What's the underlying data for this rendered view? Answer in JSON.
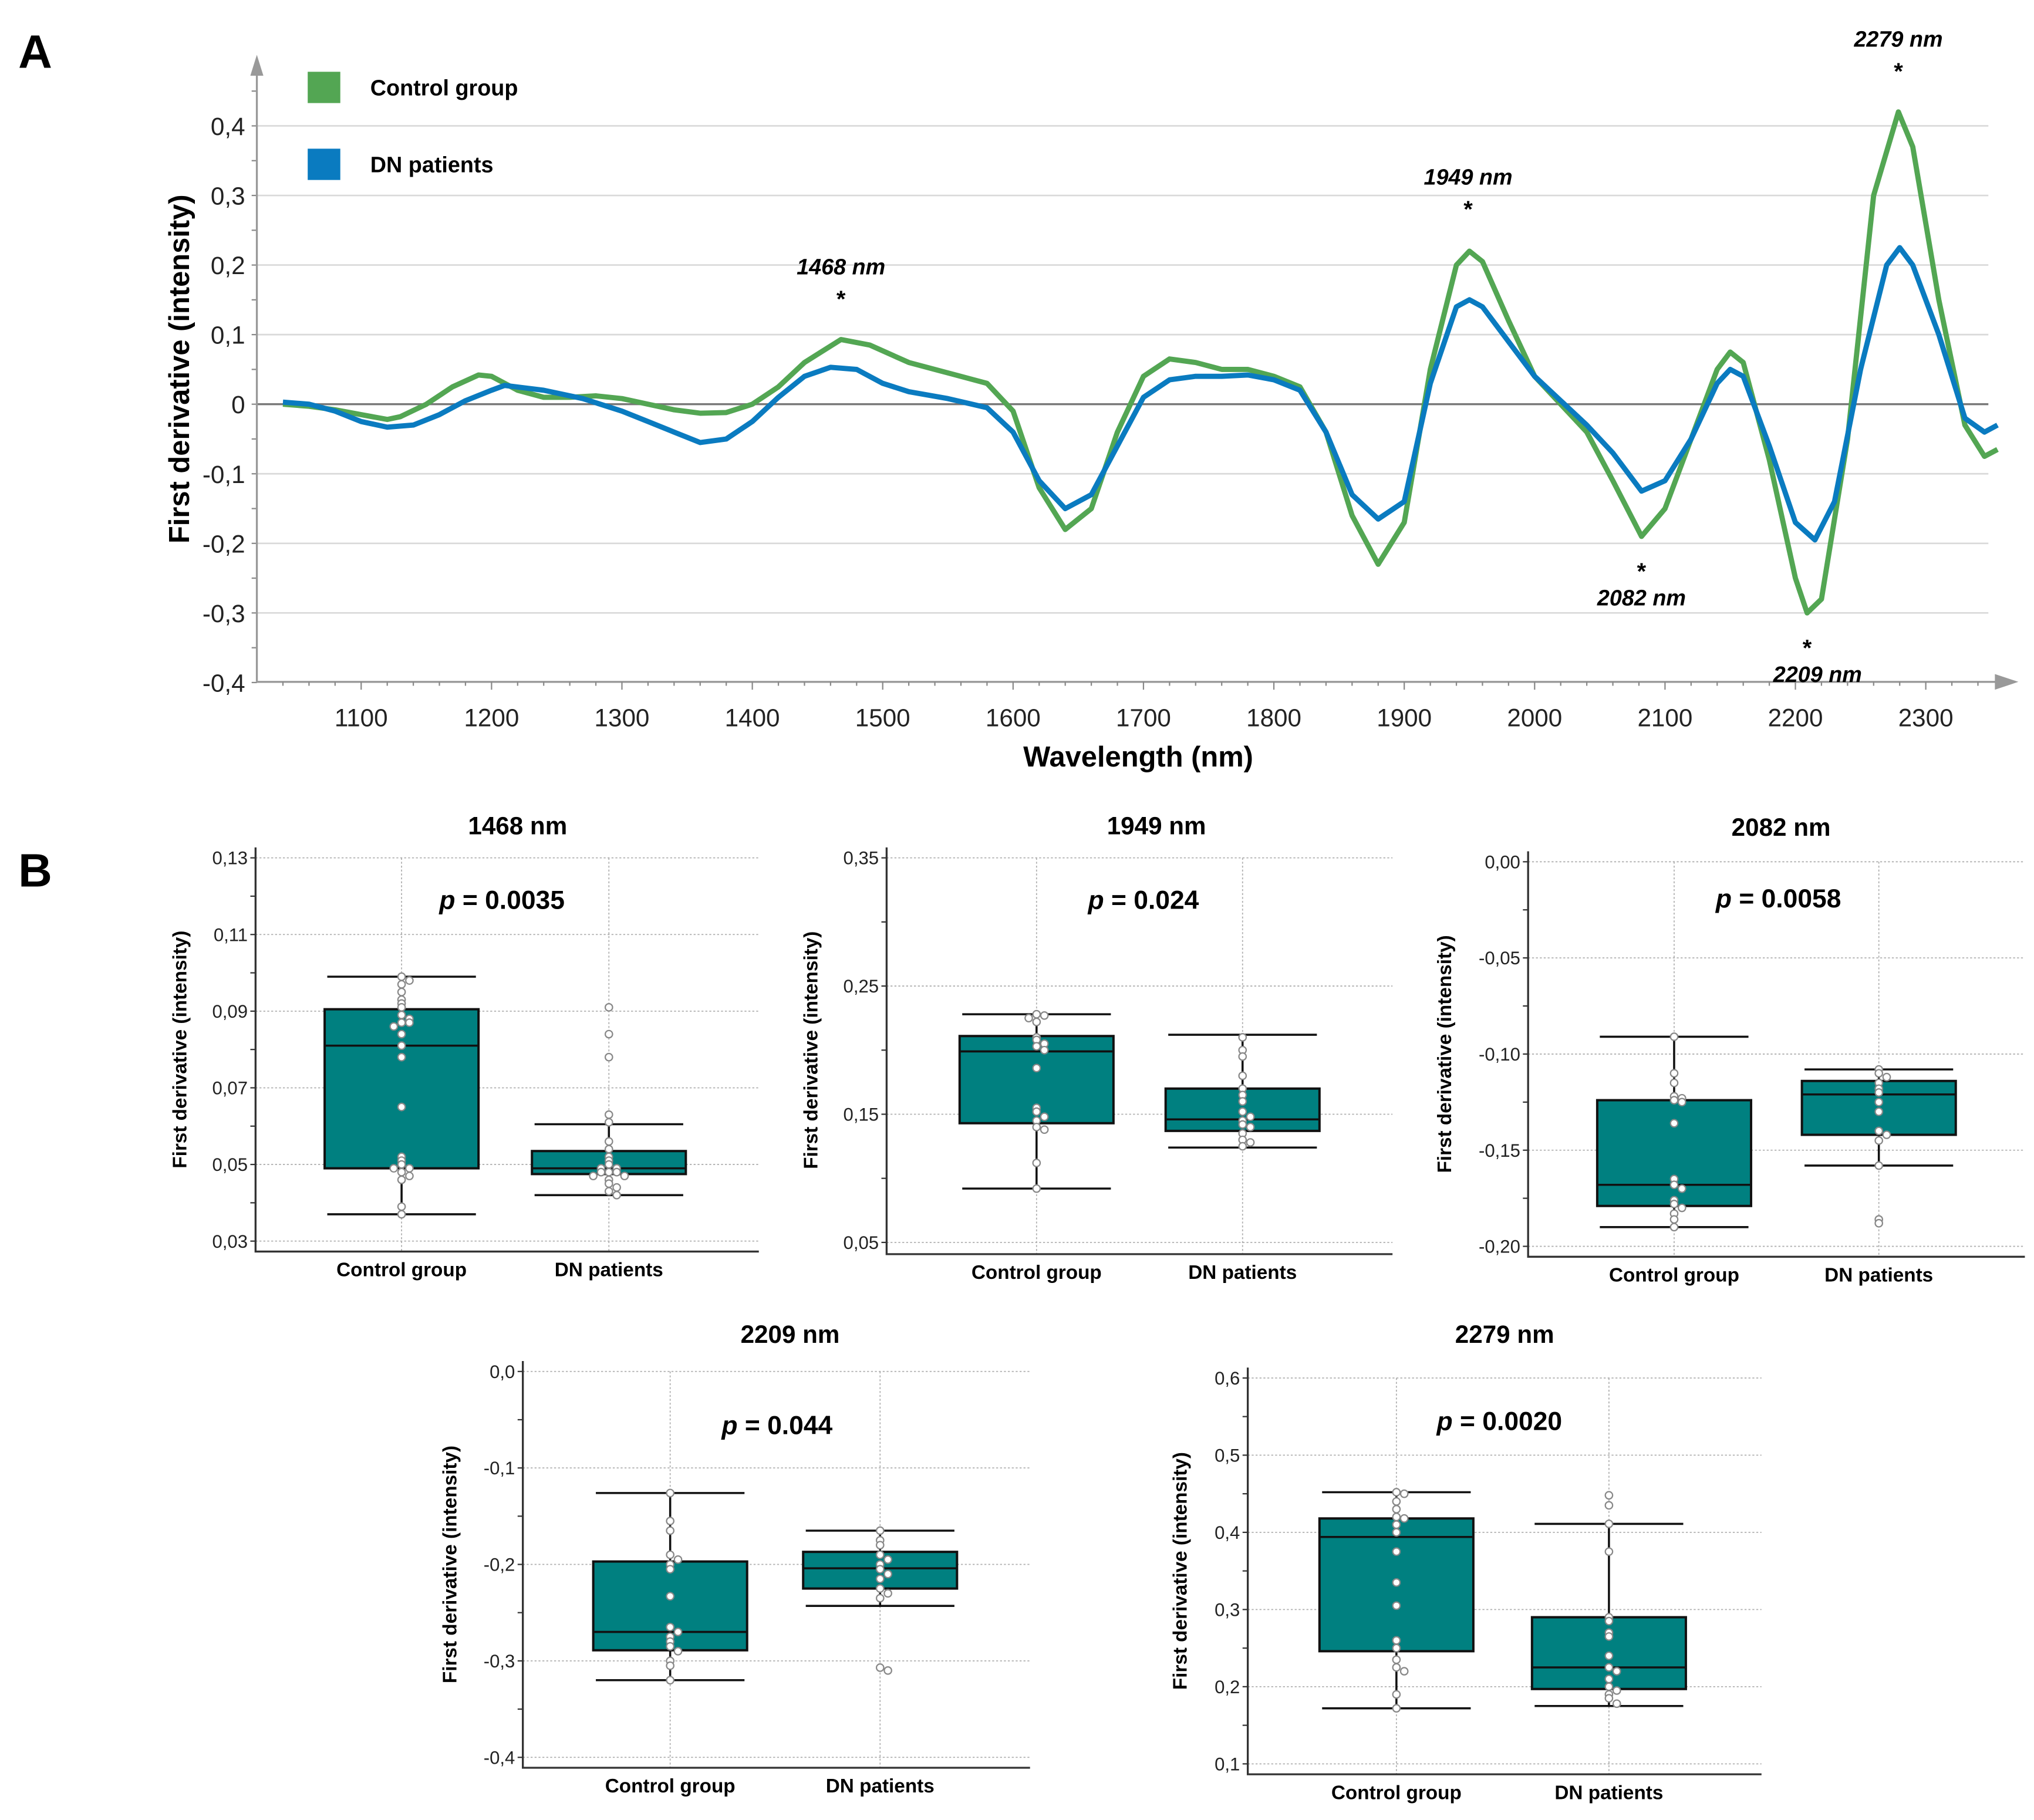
{
  "panel_labels": {
    "a": "A",
    "b": "B"
  },
  "chart_data": [
    {
      "type": "line",
      "panel": "A",
      "xlabel": "Wavelength (nm)",
      "ylabel": "First derivative (intensity)",
      "xlim": [
        1040,
        2360
      ],
      "ylim": [
        -0.4,
        0.4
      ],
      "xticks": [
        1100,
        1200,
        1300,
        1400,
        1500,
        1600,
        1700,
        1800,
        1900,
        2000,
        2100,
        2200,
        2300
      ],
      "yticks": [
        {
          "v": 0.4,
          "label": "0,4"
        },
        {
          "v": 0.3,
          "label": "0,3"
        },
        {
          "v": 0.2,
          "label": "0,2"
        },
        {
          "v": 0.1,
          "label": "0,1"
        },
        {
          "v": 0,
          "label": "0"
        },
        {
          "v": -0.1,
          "label": "-0,1"
        },
        {
          "v": -0.2,
          "label": "-0,2"
        },
        {
          "v": -0.3,
          "label": "-0,3"
        },
        {
          "v": -0.4,
          "label": "-0,4"
        }
      ],
      "grid": true,
      "legend_position": "top-left",
      "series": [
        {
          "name": "Control group",
          "color": "#53a653",
          "x": [
            1040,
            1060,
            1080,
            1100,
            1120,
            1130,
            1150,
            1170,
            1190,
            1200,
            1220,
            1240,
            1260,
            1280,
            1300,
            1320,
            1340,
            1360,
            1380,
            1400,
            1420,
            1440,
            1468,
            1490,
            1520,
            1550,
            1580,
            1600,
            1620,
            1640,
            1660,
            1680,
            1700,
            1720,
            1740,
            1760,
            1780,
            1800,
            1820,
            1840,
            1860,
            1880,
            1900,
            1920,
            1940,
            1950,
            1960,
            1980,
            2000,
            2020,
            2040,
            2060,
            2082,
            2100,
            2120,
            2140,
            2150,
            2160,
            2180,
            2200,
            2209,
            2220,
            2240,
            2260,
            2279,
            2290,
            2310,
            2330,
            2345,
            2355
          ],
          "y": [
            0,
            -0.003,
            -0.008,
            -0.015,
            -0.022,
            -0.018,
            0,
            0.025,
            0.042,
            0.04,
            0.02,
            0.01,
            0.01,
            0.012,
            0.008,
            0,
            -0.008,
            -0.013,
            -0.012,
            0,
            0.025,
            0.06,
            0.093,
            0.085,
            0.06,
            0.045,
            0.03,
            -0.01,
            -0.12,
            -0.18,
            -0.15,
            -0.04,
            0.04,
            0.065,
            0.06,
            0.05,
            0.05,
            0.04,
            0.025,
            -0.04,
            -0.16,
            -0.23,
            -0.17,
            0.05,
            0.2,
            0.22,
            0.205,
            0.12,
            0.04,
            0,
            -0.04,
            -0.11,
            -0.19,
            -0.15,
            -0.05,
            0.05,
            0.075,
            0.06,
            -0.08,
            -0.25,
            -0.3,
            -0.28,
            -0.05,
            0.3,
            0.42,
            0.37,
            0.15,
            -0.03,
            -0.075,
            -0.065
          ]
        },
        {
          "name": "DN patients",
          "color": "#0a7bc0",
          "x": [
            1040,
            1060,
            1080,
            1100,
            1120,
            1140,
            1160,
            1180,
            1200,
            1210,
            1240,
            1270,
            1300,
            1320,
            1340,
            1360,
            1380,
            1400,
            1420,
            1440,
            1460,
            1480,
            1500,
            1520,
            1550,
            1580,
            1600,
            1620,
            1640,
            1660,
            1680,
            1700,
            1720,
            1740,
            1760,
            1780,
            1800,
            1820,
            1840,
            1860,
            1880,
            1900,
            1920,
            1940,
            1950,
            1960,
            1980,
            2000,
            2020,
            2040,
            2060,
            2082,
            2100,
            2120,
            2140,
            2150,
            2160,
            2180,
            2200,
            2215,
            2230,
            2250,
            2270,
            2280,
            2290,
            2310,
            2330,
            2345,
            2355
          ],
          "y": [
            0.003,
            0,
            -0.01,
            -0.025,
            -0.033,
            -0.03,
            -0.015,
            0.005,
            0.02,
            0.027,
            0.02,
            0.008,
            -0.01,
            -0.025,
            -0.04,
            -0.055,
            -0.05,
            -0.025,
            0.01,
            0.04,
            0.053,
            0.05,
            0.03,
            0.018,
            0.008,
            -0.005,
            -0.04,
            -0.11,
            -0.15,
            -0.13,
            -0.06,
            0.01,
            0.035,
            0.04,
            0.04,
            0.042,
            0.035,
            0.02,
            -0.04,
            -0.13,
            -0.165,
            -0.14,
            0.03,
            0.14,
            0.15,
            0.14,
            0.09,
            0.04,
            0.005,
            -0.03,
            -0.07,
            -0.125,
            -0.11,
            -0.05,
            0.03,
            0.05,
            0.04,
            -0.06,
            -0.17,
            -0.195,
            -0.14,
            0.05,
            0.2,
            0.225,
            0.2,
            0.1,
            -0.02,
            -0.04,
            -0.03
          ]
        }
      ],
      "annotations": [
        {
          "label": "1468 nm",
          "star": "*",
          "x": 1468,
          "y": 0.093,
          "side": "above"
        },
        {
          "label": "1949 nm",
          "star": "*",
          "x": 1949,
          "y": 0.222,
          "side": "above"
        },
        {
          "label": "2279 nm",
          "star": "*",
          "x": 2279,
          "y": 0.42,
          "side": "above"
        },
        {
          "label": "2082 nm",
          "star": "*",
          "x": 2082,
          "y": -0.19,
          "side": "below"
        },
        {
          "label": "2209 nm",
          "star": "*",
          "x": 2209,
          "y": -0.3,
          "side": "below"
        }
      ]
    },
    {
      "type": "box",
      "panel": "B",
      "title": "1468 nm",
      "p_label": "p",
      "p_value": "= 0.0035",
      "ylabel": "First derivative (intensity)",
      "ylim": [
        0.03,
        0.13
      ],
      "yminor": 0.01,
      "yticks": [
        {
          "v": 0.13,
          "label": "0,13"
        },
        {
          "v": 0.11,
          "label": "0,11"
        },
        {
          "v": 0.09,
          "label": "0,09"
        },
        {
          "v": 0.07,
          "label": "0,07"
        },
        {
          "v": 0.05,
          "label": "0,05"
        },
        {
          "v": 0.03,
          "label": "0,03"
        }
      ],
      "fill": "#008080",
      "groups": [
        {
          "name": "Control group",
          "whisker_low": 0.037,
          "q1": 0.049,
          "median": 0.081,
          "q3": 0.0905,
          "whisker_high": 0.099,
          "points": [
            0.099,
            0.098,
            0.097,
            0.095,
            0.093,
            0.092,
            0.091,
            0.089,
            0.088,
            0.087,
            0.087,
            0.086,
            0.084,
            0.081,
            0.078,
            0.065,
            0.052,
            0.051,
            0.05,
            0.049,
            0.049,
            0.048,
            0.047,
            0.046,
            0.039,
            0.037
          ]
        },
        {
          "name": "DN patients",
          "whisker_low": 0.042,
          "q1": 0.0475,
          "median": 0.049,
          "q3": 0.0535,
          "whisker_high": 0.0605,
          "points": [
            0.091,
            0.084,
            0.078,
            0.063,
            0.061,
            0.056,
            0.054,
            0.052,
            0.051,
            0.05,
            0.049,
            0.049,
            0.048,
            0.048,
            0.048,
            0.047,
            0.047,
            0.046,
            0.045,
            0.044,
            0.043,
            0.042
          ]
        }
      ]
    },
    {
      "type": "box",
      "panel": "B",
      "title": "1949 nm",
      "p_label": "p",
      "p_value": "= 0.024",
      "ylabel": "First derivative (intensity)",
      "ylim": [
        0.05,
        0.35
      ],
      "yminor": 0.05,
      "yticks": [
        {
          "v": 0.35,
          "label": "0,35"
        },
        {
          "v": 0.25,
          "label": "0,25"
        },
        {
          "v": 0.15,
          "label": "0,15"
        },
        {
          "v": 0.05,
          "label": "0,05"
        }
      ],
      "fill": "#008080",
      "groups": [
        {
          "name": "Control group",
          "whisker_low": 0.092,
          "q1": 0.143,
          "median": 0.199,
          "q3": 0.211,
          "whisker_high": 0.228,
          "points": [
            0.228,
            0.227,
            0.225,
            0.222,
            0.21,
            0.208,
            0.205,
            0.203,
            0.2,
            0.186,
            0.155,
            0.152,
            0.148,
            0.145,
            0.14,
            0.138,
            0.112,
            0.092
          ]
        },
        {
          "name": "DN patients",
          "whisker_low": 0.124,
          "q1": 0.137,
          "median": 0.146,
          "q3": 0.17,
          "whisker_high": 0.212,
          "points": [
            0.21,
            0.2,
            0.195,
            0.18,
            0.17,
            0.165,
            0.16,
            0.152,
            0.148,
            0.145,
            0.142,
            0.14,
            0.135,
            0.13,
            0.128,
            0.125
          ]
        }
      ]
    },
    {
      "type": "box",
      "panel": "B",
      "title": "2082 nm",
      "p_label": "p",
      "p_value": "= 0.0058",
      "ylabel": "First derivative (intensity)",
      "ylim": [
        -0.2,
        0.0
      ],
      "yminor": 0.025,
      "yticks": [
        {
          "v": 0,
          "label": "0,00"
        },
        {
          "v": -0.05,
          "label": "-0,05"
        },
        {
          "v": -0.1,
          "label": "-0,10"
        },
        {
          "v": -0.15,
          "label": "-0,15"
        },
        {
          "v": -0.2,
          "label": "-0,20"
        }
      ],
      "fill": "#008080",
      "groups": [
        {
          "name": "Control group",
          "whisker_low": -0.19,
          "q1": -0.179,
          "median": -0.168,
          "q3": -0.124,
          "whisker_high": -0.091,
          "points": [
            -0.091,
            -0.11,
            -0.115,
            -0.122,
            -0.123,
            -0.124,
            -0.125,
            -0.136,
            -0.165,
            -0.168,
            -0.17,
            -0.176,
            -0.178,
            -0.18,
            -0.183,
            -0.186,
            -0.19
          ]
        },
        {
          "name": "DN patients",
          "whisker_low": -0.158,
          "q1": -0.142,
          "median": -0.121,
          "q3": -0.114,
          "whisker_high": -0.108,
          "points": [
            -0.108,
            -0.11,
            -0.112,
            -0.115,
            -0.118,
            -0.12,
            -0.125,
            -0.13,
            -0.14,
            -0.142,
            -0.145,
            -0.158,
            -0.186,
            -0.188
          ]
        }
      ]
    },
    {
      "type": "box",
      "panel": "B",
      "title": "2209 nm",
      "p_label": "p",
      "p_value": "= 0.044",
      "ylabel": "First derivative (intensity)",
      "ylim": [
        -0.4,
        0.0
      ],
      "yminor": 0.05,
      "yticks": [
        {
          "v": 0,
          "label": "0,0"
        },
        {
          "v": -0.1,
          "label": "-0,1"
        },
        {
          "v": -0.2,
          "label": "-0,2"
        },
        {
          "v": -0.3,
          "label": "-0,3"
        },
        {
          "v": -0.4,
          "label": "-0,4"
        }
      ],
      "fill": "#008080",
      "groups": [
        {
          "name": "Control group",
          "whisker_low": -0.32,
          "q1": -0.289,
          "median": -0.27,
          "q3": -0.197,
          "whisker_high": -0.126,
          "points": [
            -0.126,
            -0.155,
            -0.165,
            -0.19,
            -0.195,
            -0.2,
            -0.205,
            -0.233,
            -0.265,
            -0.27,
            -0.275,
            -0.28,
            -0.285,
            -0.29,
            -0.3,
            -0.305,
            -0.32
          ]
        },
        {
          "name": "DN patients",
          "whisker_low": -0.243,
          "q1": -0.225,
          "median": -0.204,
          "q3": -0.187,
          "whisker_high": -0.165,
          "points": [
            -0.165,
            -0.175,
            -0.18,
            -0.19,
            -0.195,
            -0.2,
            -0.205,
            -0.21,
            -0.215,
            -0.225,
            -0.23,
            -0.235,
            -0.307,
            -0.31
          ]
        }
      ]
    },
    {
      "type": "box",
      "panel": "B",
      "title": "2279 nm",
      "p_label": "p",
      "p_value": "= 0.0020",
      "ylabel": "First derivative (intensity)",
      "ylim": [
        0.1,
        0.6
      ],
      "yminor": 0.05,
      "yticks": [
        {
          "v": 0.6,
          "label": "0,6"
        },
        {
          "v": 0.5,
          "label": "0,5"
        },
        {
          "v": 0.4,
          "label": "0,4"
        },
        {
          "v": 0.3,
          "label": "0,3"
        },
        {
          "v": 0.2,
          "label": "0,2"
        },
        {
          "v": 0.1,
          "label": "0,1"
        }
      ],
      "fill": "#008080",
      "groups": [
        {
          "name": "Control group",
          "whisker_low": 0.172,
          "q1": 0.246,
          "median": 0.394,
          "q3": 0.418,
          "whisker_high": 0.452,
          "points": [
            0.452,
            0.45,
            0.44,
            0.43,
            0.42,
            0.418,
            0.41,
            0.4,
            0.375,
            0.335,
            0.305,
            0.26,
            0.25,
            0.235,
            0.225,
            0.22,
            0.19,
            0.172
          ]
        },
        {
          "name": "DN patients",
          "whisker_low": 0.175,
          "q1": 0.197,
          "median": 0.225,
          "q3": 0.29,
          "whisker_high": 0.411,
          "points": [
            0.448,
            0.435,
            0.411,
            0.375,
            0.29,
            0.285,
            0.27,
            0.265,
            0.24,
            0.225,
            0.22,
            0.21,
            0.2,
            0.195,
            0.19,
            0.185,
            0.178
          ]
        }
      ]
    }
  ]
}
